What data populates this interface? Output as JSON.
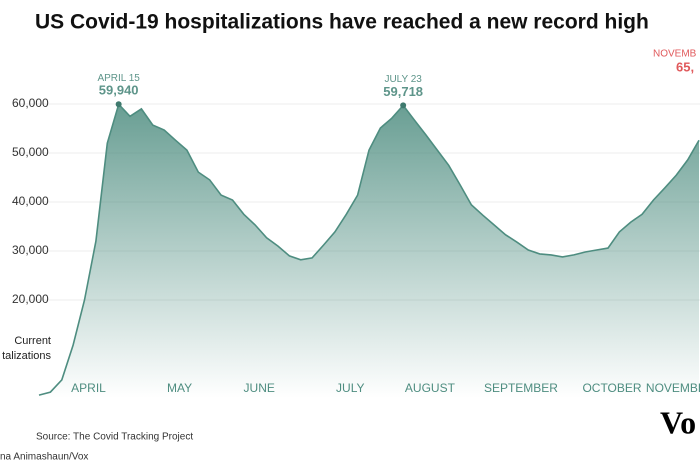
{
  "chart_data": {
    "type": "area",
    "title": "US Covid-19 hospitalizations have reached a new record high",
    "y_label_lines": [
      "Current",
      "talizations"
    ],
    "categories": [
      null,
      null,
      null,
      null,
      "APRIL",
      null,
      null,
      null,
      null,
      null,
      null,
      null,
      "MAY",
      null,
      null,
      null,
      null,
      null,
      null,
      "JUNE",
      null,
      null,
      null,
      null,
      null,
      null,
      null,
      "JULY",
      null,
      null,
      null,
      null,
      null,
      null,
      "AUGUST",
      null,
      null,
      null,
      null,
      null,
      null,
      null,
      "SEPTEMBER",
      null,
      null,
      null,
      null,
      null,
      null,
      null,
      "OCTOBER",
      null,
      null,
      null,
      null,
      null,
      "NOVEMBER",
      null,
      null
    ],
    "values": [
      600,
      1200,
      3700,
      10800,
      20000,
      32000,
      52000,
      59940,
      57500,
      59000,
      55700,
      54700,
      52600,
      50600,
      46100,
      44500,
      41400,
      40400,
      37500,
      35300,
      32700,
      31000,
      29000,
      28200,
      28600,
      31200,
      33900,
      37500,
      41400,
      50600,
      55100,
      57100,
      59718,
      56700,
      53700,
      50600,
      47500,
      43500,
      39400,
      37300,
      35300,
      33300,
      31800,
      30200,
      29400,
      29200,
      28800,
      29200,
      29800,
      30200,
      30600,
      33900,
      35900,
      37500,
      40400,
      42900,
      45500,
      48600,
      52600
    ],
    "color": "#4e8d80",
    "ylim": [
      0,
      65000
    ],
    "yticks": [
      {
        "value": 20000,
        "label": "20,000"
      },
      {
        "value": 30000,
        "label": "30,000"
      },
      {
        "value": 40000,
        "label": "40,000"
      },
      {
        "value": 50000,
        "label": "50,000"
      },
      {
        "value": 60000,
        "label": "60,000"
      }
    ],
    "grid": true,
    "annotations": [
      {
        "label": "APRIL 15",
        "value": 59940,
        "value_label": "59,940",
        "color": "#5e958a"
      },
      {
        "label": "JULY 23",
        "value": 59718,
        "value_label": "59,718",
        "color": "#5e958a"
      },
      {
        "label": "NOVEMB",
        "note": "65,",
        "color": "#e0595b"
      }
    ],
    "source": "Source: The Covid Tracking Project",
    "credit": "na Animashaun/Vox",
    "logo": "Vo"
  }
}
